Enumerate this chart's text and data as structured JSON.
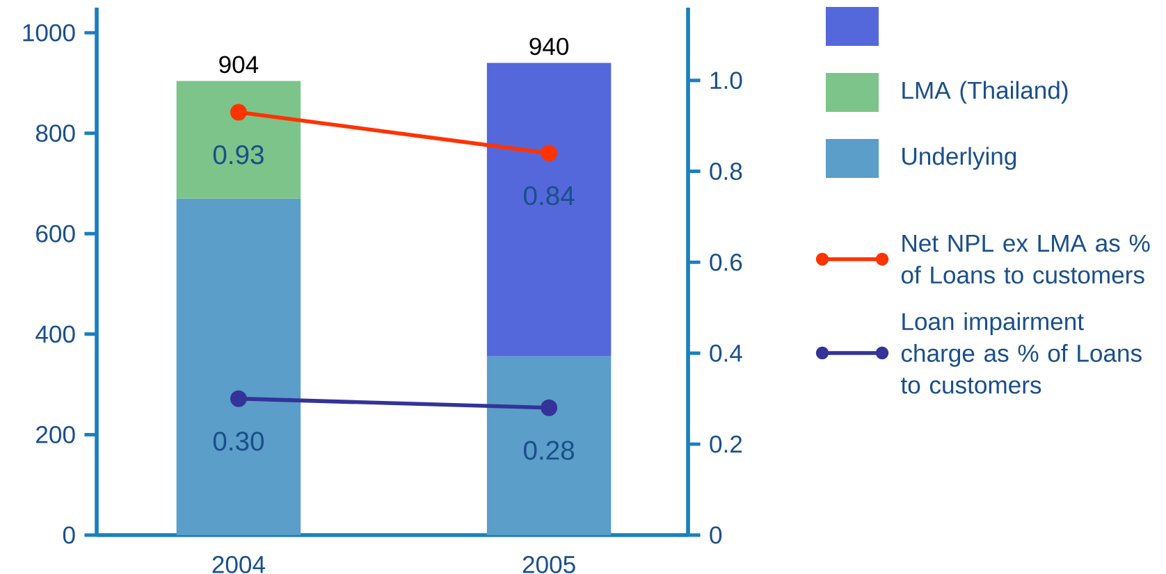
{
  "chart_data": {
    "type": "bar",
    "stacked": true,
    "categories": [
      "2004",
      "2005"
    ],
    "series": [
      {
        "name": "Underlying",
        "color": "#5b9ec9",
        "values": [
          670,
          356
        ]
      },
      {
        "name": "LMA (Thailand)",
        "color": "#7cc48a",
        "values": [
          234,
          null
        ]
      },
      {
        "color": "#5468dc",
        "values": [
          null,
          584
        ]
      },
      {
        "name": "Net NPL ex LMA as % of Loans to customers",
        "type": "line",
        "axis": "y2",
        "color": "#ff3300",
        "values": [
          0.93,
          0.84
        ],
        "value_labels": [
          "0.93",
          "0.84"
        ]
      },
      {
        "name": "Loan impairment charge as % of Loans to customers",
        "type": "line",
        "axis": "y2",
        "color": "#333399",
        "values": [
          0.3,
          0.28
        ],
        "value_labels": [
          "0.30",
          "0.28"
        ]
      }
    ],
    "totals": [
      "904",
      "940"
    ],
    "ylim": [
      0,
      1050
    ],
    "yticks": [
      0,
      200,
      400,
      600,
      800,
      1000
    ],
    "y2lim": [
      0,
      1.16
    ],
    "y2ticks": [
      {
        "value": 0,
        "label": "0"
      },
      {
        "value": 0.2,
        "label": "0.2"
      },
      {
        "value": 0.4,
        "label": "0.4"
      },
      {
        "value": 0.6,
        "label": "0.6"
      },
      {
        "value": 0.8,
        "label": "0.8"
      },
      {
        "value": 1.0,
        "label": "1.0"
      }
    ],
    "marker": "circle",
    "legend": "right",
    "grid": false
  }
}
